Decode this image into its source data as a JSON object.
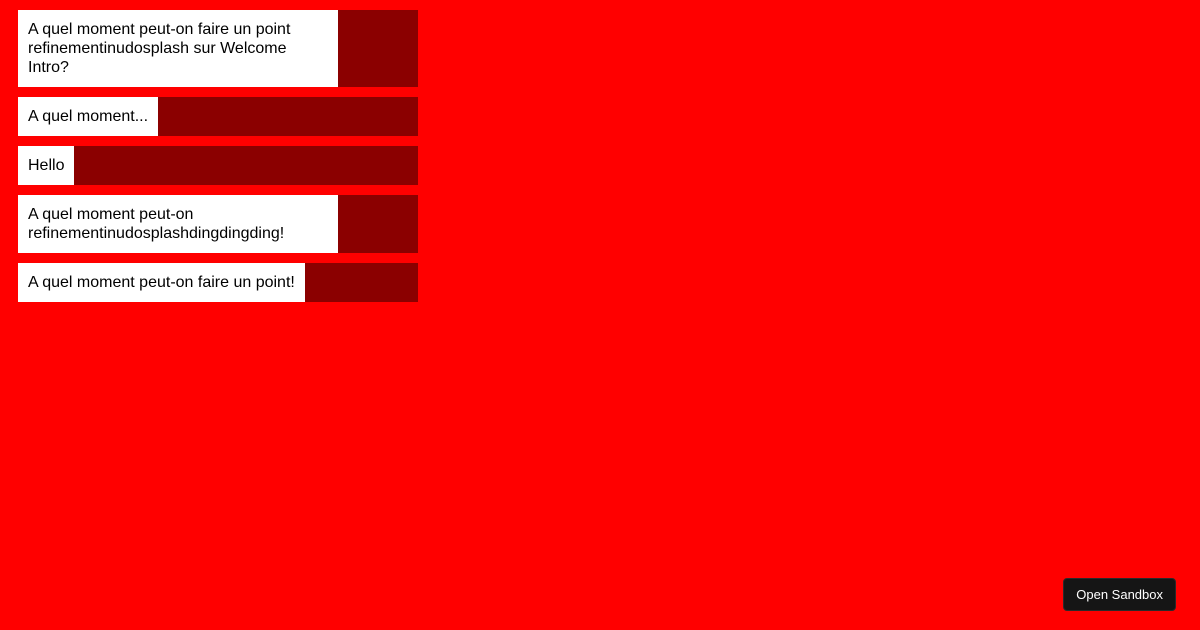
{
  "messages": [
    "A quel moment peut-on faire un point refinementinudosplash sur Welcome Intro?",
    "A quel moment...",
    "Hello",
    "A quel moment peut-on refinementinudosplashdingdingding!",
    "A quel moment peut-on faire un point!"
  ],
  "sandbox_button": "Open Sandbox",
  "colors": {
    "background": "#ff0000",
    "row_track": "#8b0000",
    "bubble": "#ffffff",
    "button": "#151515"
  }
}
